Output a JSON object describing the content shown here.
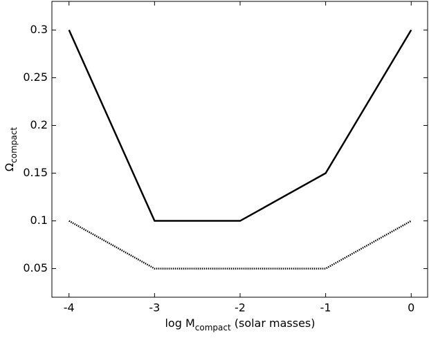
{
  "chart_data": {
    "type": "line",
    "x_label": [
      "log M",
      "compact",
      " (solar masses)"
    ],
    "y_label": [
      "Ω",
      "compact"
    ],
    "x": [
      -4,
      -3,
      -2,
      -1,
      0
    ],
    "series": [
      {
        "color": "#000000",
        "style": "solid",
        "values": [
          0.3,
          0.1,
          0.1,
          0.15,
          0.3
        ]
      },
      {
        "color": "#000000",
        "style": "dotted",
        "values": [
          0.1,
          0.05,
          0.05,
          0.05,
          0.1
        ]
      }
    ],
    "xlim": [
      -4.2,
      0.2
    ],
    "xticks": [
      -4,
      -3,
      -2,
      -1,
      0
    ],
    "ylim": [
      0.02,
      0.33
    ],
    "yticks": [
      0.05,
      0.1,
      0.15,
      0.2,
      0.25,
      0.3
    ],
    "grid": false
  }
}
